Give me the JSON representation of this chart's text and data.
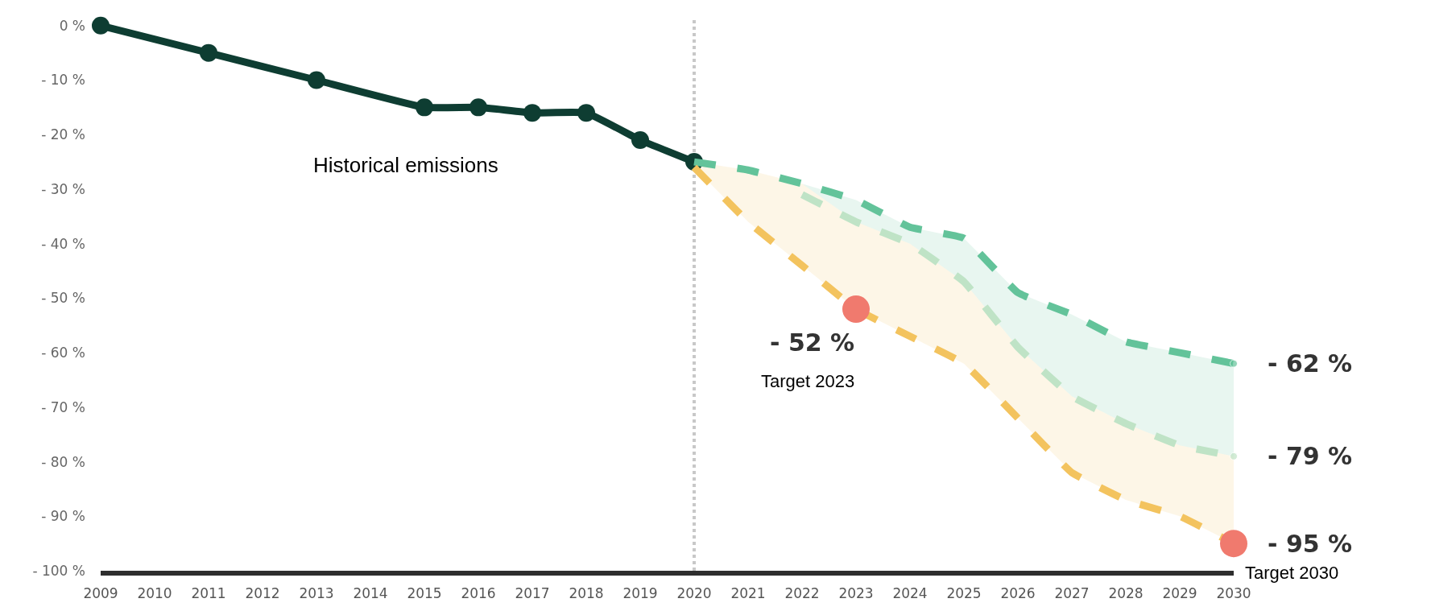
{
  "chart_data": {
    "type": "line",
    "xlim": [
      2009,
      2030
    ],
    "xticks": [
      2009,
      2010,
      2011,
      2012,
      2013,
      2014,
      2015,
      2016,
      2017,
      2018,
      2019,
      2020,
      2021,
      2022,
      2023,
      2024,
      2025,
      2026,
      2027,
      2028,
      2029,
      2030
    ],
    "ylim": [
      -100,
      1
    ],
    "yticks": [
      {
        "value": 0,
        "label": "0 %"
      },
      {
        "value": -10,
        "label": "- 10 %"
      },
      {
        "value": -20,
        "label": "- 20 %"
      },
      {
        "value": -30,
        "label": "- 30 %"
      },
      {
        "value": -40,
        "label": "- 40 %"
      },
      {
        "value": -50,
        "label": "- 50 %"
      },
      {
        "value": -60,
        "label": "- 60 %"
      },
      {
        "value": -70,
        "label": "- 70 %"
      },
      {
        "value": -80,
        "label": "- 80 %"
      },
      {
        "value": -90,
        "label": "- 90 %"
      },
      {
        "value": -100,
        "label": "- 100 %"
      }
    ],
    "legend": false,
    "series": [
      {
        "name": "Historical emissions",
        "color": "#0e3d32",
        "marker": "circle",
        "line_style": "solid",
        "x": [
          2009,
          2011,
          2013,
          2015,
          2016,
          2017,
          2018,
          2019,
          2020
        ],
        "values": [
          0,
          -5,
          -10,
          -15,
          -15,
          -16,
          -16,
          -21,
          -25
        ]
      },
      {
        "color": "#63c39a",
        "marker": "none",
        "line_style": "dashed",
        "x": [
          2020,
          2021,
          2022,
          2023,
          2024,
          2025,
          2026,
          2027,
          2028,
          2029,
          2030
        ],
        "values": [
          -25,
          -26.5,
          -29,
          -32,
          -37,
          -39,
          -49,
          -53,
          -58,
          -60,
          -62
        ],
        "value_labels": [
          null,
          null,
          null,
          null,
          null,
          null,
          null,
          null,
          null,
          null,
          "- 62 %"
        ],
        "lower": [
          -25,
          -26.5,
          -29,
          -36,
          -40,
          -47,
          -59,
          -68,
          -73,
          -77,
          -79
        ],
        "upper": [
          -25,
          -26.5,
          -29,
          -32,
          -37,
          -39,
          -49,
          -53,
          -58,
          -60,
          -62
        ]
      },
      {
        "color": "#bfe3c6",
        "marker": "none",
        "line_style": "dashed",
        "x": [
          2022,
          2023,
          2024,
          2025,
          2026,
          2027,
          2028,
          2029,
          2030
        ],
        "values": [
          -31,
          -36,
          -40,
          -47,
          -59,
          -68,
          -73,
          -77,
          -79
        ],
        "value_labels": [
          null,
          null,
          null,
          null,
          null,
          null,
          null,
          null,
          "- 79 %"
        ]
      },
      {
        "color": "#f3c35e",
        "marker": "none",
        "line_style": "dashed",
        "x": [
          2020,
          2021,
          2022,
          2023,
          2024,
          2025,
          2026,
          2027,
          2028,
          2029,
          2030
        ],
        "values": [
          -26,
          -36,
          -44,
          -52,
          -57,
          -62,
          -72,
          -82,
          -87,
          -90,
          -95
        ],
        "lower": [
          -26,
          -36,
          -44,
          -52,
          -57,
          -62,
          -72,
          -82,
          -87,
          -90,
          -95
        ],
        "upper": [
          -25,
          -26.5,
          -29,
          -36,
          -40,
          -47,
          -59,
          -68,
          -73,
          -77,
          -79
        ]
      },
      {
        "type": "scatter",
        "color": "#f07a6e",
        "marker": "circle",
        "x": [
          2023,
          2030
        ],
        "values": [
          -52,
          -95
        ],
        "value_labels": [
          "- 52 %",
          "- 95 %"
        ]
      }
    ],
    "ref_lines": [
      {
        "axis": "x",
        "value": 2020,
        "color": "#c8c8c8",
        "line_style": "dotted"
      }
    ],
    "annotations": [
      "Target 2023",
      "Target 2030"
    ]
  }
}
